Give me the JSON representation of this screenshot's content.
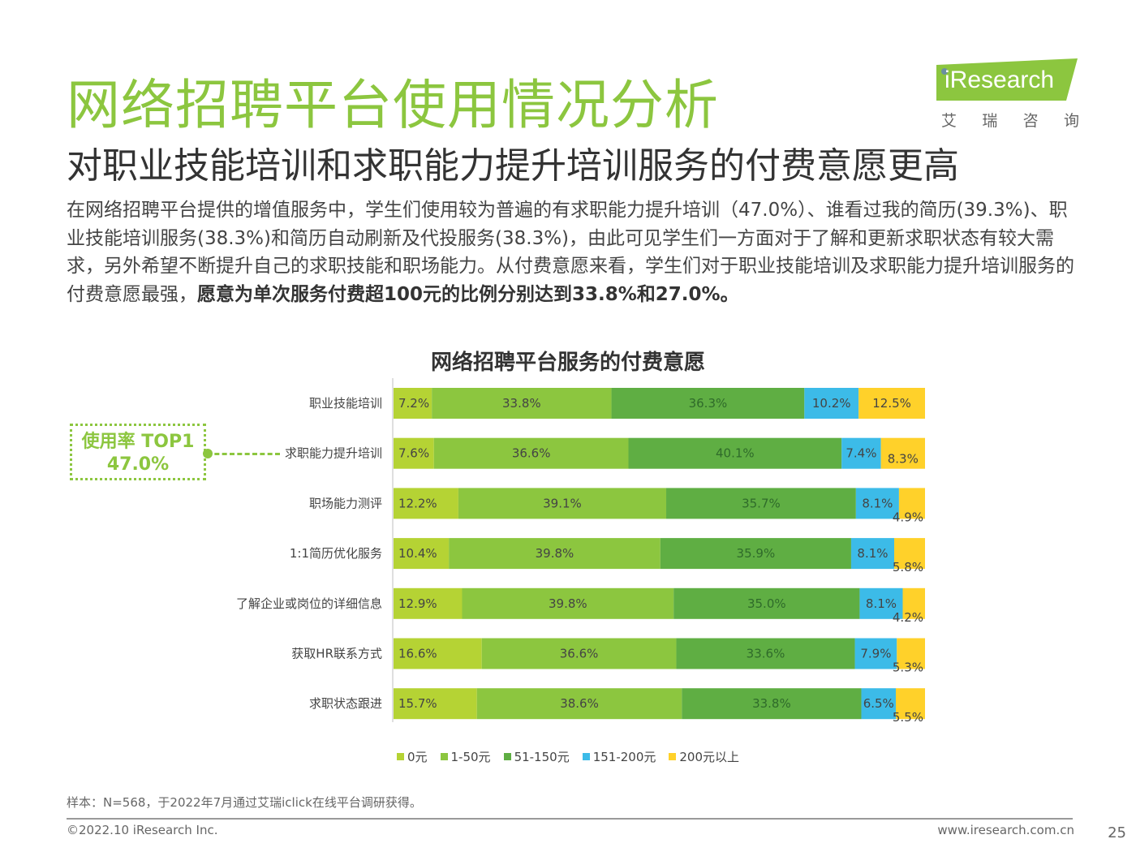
{
  "header": {
    "title": "网络招聘平台使用情况分析",
    "subtitle": "对职业技能培训和求职能力提升培训服务的付费意愿更高"
  },
  "logo": {
    "text": "iResearch",
    "cn": [
      "艾",
      "瑞",
      "咨",
      "询"
    ],
    "colors": {
      "bg": "#8cc63f",
      "text": "#ffffff"
    }
  },
  "intro": {
    "text": "在网络招聘平台提供的增值服务中，学生们使用较为普遍的有求职能力提升培训（47.0%）、谁看过我的简历(39.3%)、职业技能培训服务(38.3%)和简历自动刷新及代投服务(38.3%)，由此可见学生们一方面对于了解和更新求职状态有较大需求，另外希望不断提升自己的求职技能和职场能力。从付费意愿来看，学生们对于职业技能培训及求职能力提升培训服务的付费意愿最强，",
    "bold": "愿意为单次服务付费超100元的比例分别达到33.8%和27.0%。"
  },
  "callout": {
    "label": "使用率 TOP1",
    "value": "47.0%"
  },
  "chart_data": {
    "type": "bar",
    "orientation": "horizontal",
    "stacked": true,
    "normalized": true,
    "title": "网络招聘平台服务的付费意愿",
    "categories": [
      "职业技能培训",
      "求职能力提升培训",
      "职场能力测评",
      "1:1简历优化服务",
      "了解企业或岗位的详细信息",
      "获取HR联系方式",
      "求职状态跟进"
    ],
    "series": [
      {
        "name": "0元",
        "color": "#b5d334",
        "values": [
          7.2,
          7.6,
          12.2,
          10.4,
          12.9,
          16.6,
          15.7
        ]
      },
      {
        "name": "1-50元",
        "color": "#8cc63f",
        "values": [
          33.8,
          36.6,
          39.1,
          39.8,
          39.8,
          36.6,
          38.6
        ]
      },
      {
        "name": "51-150元",
        "color": "#5fae43",
        "values": [
          36.3,
          40.1,
          35.7,
          35.9,
          35.0,
          33.6,
          33.8
        ]
      },
      {
        "name": "151-200元",
        "color": "#3cbbe8",
        "values": [
          10.2,
          7.4,
          8.1,
          8.1,
          8.1,
          7.9,
          6.5
        ]
      },
      {
        "name": "200元以上",
        "color": "#ffd12a",
        "values": [
          12.5,
          8.3,
          4.9,
          5.8,
          4.2,
          5.3,
          5.5
        ]
      }
    ],
    "legend_position": "bottom",
    "grid": false
  },
  "footer": {
    "note": "样本：N=568，于2022年7月通过艾瑞iclick在线平台调研获得。",
    "copyright": "©2022.10 iResearch Inc.",
    "website": "www.iresearch.com.cn",
    "page": "25"
  }
}
